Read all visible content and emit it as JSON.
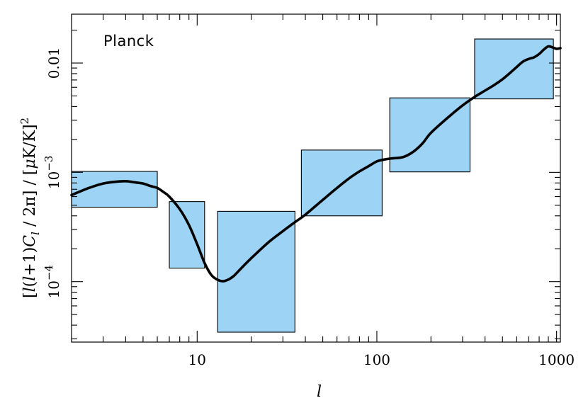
{
  "chart_data": {
    "type": "line",
    "title": "",
    "panel_label": "Planck",
    "xlabel": "l",
    "ylabel": {
      "left": "[",
      "l1": "l",
      "paren_open": "(",
      "l2": "l",
      "plus_one": "+1)",
      "C": "C",
      "C_sub": "l",
      "slash1": " / 2π]",
      "slash2": " / [",
      "mu": "μ",
      "rest": "K/K]",
      "sup": "2"
    },
    "x_scale": "log",
    "y_scale": "log",
    "xlim": [
      2,
      1050
    ],
    "ylim": [
      2.8e-05,
      0.028
    ],
    "x_ticks": [
      {
        "value": 10,
        "label": "10"
      },
      {
        "value": 100,
        "label": "100"
      },
      {
        "value": 1000,
        "label": "1000"
      }
    ],
    "y_ticks": [
      {
        "value": 0.0001,
        "base": "10",
        "exp": "−4"
      },
      {
        "value": 0.001,
        "base": "10",
        "exp": "−3"
      },
      {
        "value": 0.01,
        "base": "0.01",
        "exp": ""
      }
    ],
    "series": [
      {
        "x": [
          2,
          2.5,
          3,
          3.5,
          4,
          4.5,
          5,
          5.5,
          6,
          6.5,
          7,
          8,
          9,
          10,
          11,
          12,
          13,
          14,
          15,
          16,
          18,
          20,
          25,
          30,
          35,
          40,
          50,
          60,
          70,
          80,
          90,
          100,
          110,
          120,
          140,
          160,
          180,
          200,
          250,
          300,
          350,
          400,
          450,
          500,
          550,
          600,
          650,
          700,
          750,
          800,
          850,
          900,
          950,
          1000,
          1050
        ],
        "y": [
          0.00062,
          0.00072,
          0.00079,
          0.00082,
          0.00083,
          0.00081,
          0.00079,
          0.00075,
          0.00072,
          0.00066,
          0.0006,
          0.00046,
          0.00033,
          0.00022,
          0.000148,
          0.000115,
          0.000104,
          0.000101,
          0.000105,
          0.000113,
          0.000138,
          0.000164,
          0.00023,
          0.00029,
          0.00035,
          0.00041,
          0.00056,
          0.00072,
          0.00088,
          0.00102,
          0.00114,
          0.00126,
          0.00131,
          0.00134,
          0.00138,
          0.00155,
          0.00185,
          0.0023,
          0.0032,
          0.0041,
          0.0049,
          0.0056,
          0.0063,
          0.0071,
          0.0081,
          0.0092,
          0.0103,
          0.0109,
          0.0113,
          0.0121,
          0.0133,
          0.0142,
          0.0139,
          0.0135,
          0.0137
        ]
      }
    ],
    "boxes": [
      {
        "xmin": 2,
        "xmax": 6,
        "ymin": 0.00048,
        "ymax": 0.00102
      },
      {
        "xmin": 7,
        "xmax": 11,
        "ymin": 0.000133,
        "ymax": 0.00054
      },
      {
        "xmin": 13,
        "xmax": 35,
        "ymin": 3.45e-05,
        "ymax": 0.00044
      },
      {
        "xmin": 38,
        "xmax": 107,
        "ymin": 0.0004,
        "ymax": 0.0016
      },
      {
        "xmin": 118,
        "xmax": 330,
        "ymin": 0.00101,
        "ymax": 0.0048
      },
      {
        "xmin": 350,
        "xmax": 960,
        "ymin": 0.0047,
        "ymax": 0.0166
      }
    ]
  }
}
